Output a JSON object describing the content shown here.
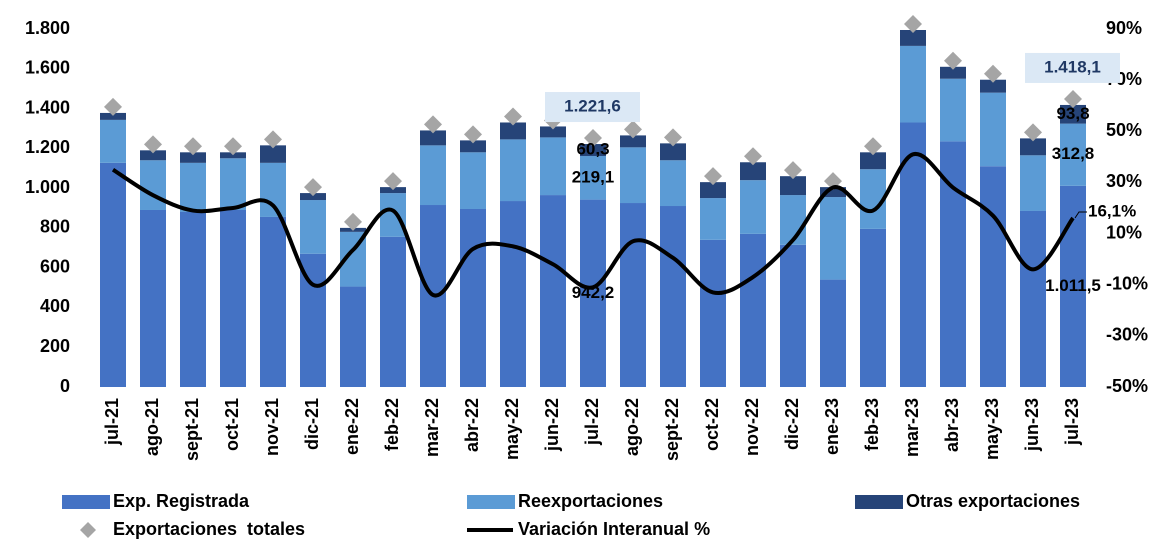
{
  "chart_data": {
    "type": "bar",
    "stacked": true,
    "categories": [
      "jul-21",
      "ago-21",
      "sept-21",
      "oct-21",
      "nov-21",
      "dic-21",
      "ene-22",
      "feb-22",
      "mar-22",
      "abr-22",
      "may-22",
      "jun-22",
      "jul-22",
      "ago-22",
      "sept-22",
      "oct-22",
      "nov-22",
      "dic-22",
      "ene-23",
      "feb-23",
      "mar-23",
      "abr-23",
      "may-23",
      "jun-23",
      "jul-23"
    ],
    "series": [
      {
        "name": "Exp. Registrada",
        "type": "bar",
        "color": "#4472c4",
        "values": [
          1127,
          890,
          880,
          890,
          855,
          670,
          505,
          755,
          915,
          895,
          935,
          965,
          942.2,
          925,
          910,
          740,
          770,
          715,
          540,
          795,
          1330,
          1235,
          1110,
          885,
          1011.5
        ],
        "value_labels": [
          null,
          null,
          null,
          null,
          null,
          null,
          null,
          null,
          null,
          null,
          null,
          null,
          "942,2",
          null,
          null,
          null,
          null,
          null,
          null,
          null,
          null,
          null,
          null,
          null,
          "1.011,5"
        ]
      },
      {
        "name": "Reexportaciones",
        "type": "bar",
        "color": "#5b9bd5",
        "values": [
          216,
          250,
          247,
          260,
          272,
          270,
          275,
          220,
          300,
          285,
          310,
          290,
          219.1,
          280,
          230,
          210,
          270,
          250,
          415,
          300,
          385,
          315,
          370,
          280,
          312.8
        ],
        "value_labels": [
          null,
          null,
          null,
          null,
          null,
          null,
          null,
          null,
          null,
          null,
          null,
          null,
          "219,1",
          null,
          null,
          null,
          null,
          null,
          null,
          null,
          null,
          null,
          null,
          null,
          "312,8"
        ]
      },
      {
        "name": "Otras exportaciones",
        "type": "bar",
        "color": "#264478",
        "values": [
          35,
          50,
          53,
          30,
          88,
          35,
          20,
          30,
          75,
          60,
          85,
          55,
          60.3,
          60,
          85,
          80,
          90,
          95,
          50,
          85,
          80,
          60,
          65,
          85,
          93.8
        ],
        "value_labels": [
          null,
          null,
          null,
          null,
          null,
          null,
          null,
          null,
          null,
          null,
          null,
          null,
          "60,3",
          null,
          null,
          null,
          null,
          null,
          null,
          null,
          null,
          null,
          null,
          null,
          "93,8"
        ]
      },
      {
        "name": "Exportaciones  totales",
        "type": "scatter",
        "color": "#a5a5a5",
        "values": [
          1378,
          1190,
          1180,
          1180,
          1215,
          975,
          800,
          1005,
          1290,
          1240,
          1330,
          1310,
          1221.6,
          1265,
          1225,
          1030,
          1130,
          1060,
          1005,
          1180,
          1795,
          1610,
          1545,
          1250,
          1418.1
        ],
        "value_labels": [
          null,
          null,
          null,
          null,
          null,
          null,
          null,
          null,
          null,
          null,
          null,
          null,
          "1.221,6",
          null,
          null,
          null,
          null,
          null,
          null,
          null,
          null,
          null,
          null,
          null,
          "1.418,1"
        ]
      },
      {
        "name": "Variación Interanual %",
        "type": "line",
        "axis": "y2",
        "color": "#000000",
        "values": [
          35,
          25,
          19,
          20,
          21,
          -10,
          3.6,
          19,
          -14,
          4,
          5,
          -2,
          -11,
          7,
          0.5,
          -13,
          -7,
          7.5,
          28,
          19,
          41,
          28,
          17,
          -4,
          16.1
        ],
        "value_labels": [
          null,
          null,
          null,
          null,
          null,
          null,
          null,
          null,
          null,
          null,
          null,
          null,
          null,
          null,
          null,
          null,
          null,
          null,
          null,
          null,
          null,
          null,
          null,
          null,
          "16,1%"
        ]
      }
    ],
    "ylim": [
      0,
      1800
    ],
    "yticks": [
      0,
      200,
      400,
      600,
      800,
      {
        "value": 1000,
        "label": "1.000"
      },
      {
        "value": 1200,
        "label": "1.200"
      },
      {
        "value": 1400,
        "label": "1.400"
      },
      {
        "value": 1600,
        "label": "1.600"
      },
      {
        "value": 1800,
        "label": "1.800"
      }
    ],
    "y2lim": [
      -50,
      90
    ],
    "y2ticks": [
      {
        "value": -50,
        "label": "-50%"
      },
      {
        "value": -30,
        "label": "-30%"
      },
      {
        "value": -10,
        "label": "-10%"
      },
      {
        "value": 10,
        "label": "10%"
      },
      {
        "value": 30,
        "label": "30%"
      },
      {
        "value": 50,
        "label": "50%"
      },
      {
        "value": 70,
        "label": "70%"
      },
      {
        "value": 90,
        "label": "90%"
      }
    ],
    "grid": false,
    "legend": "bottom"
  }
}
